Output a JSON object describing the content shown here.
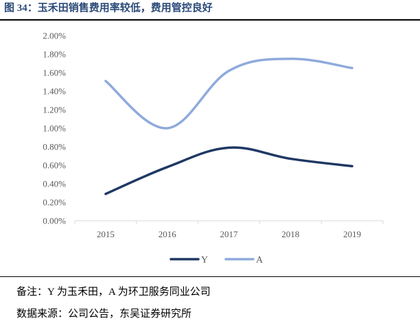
{
  "title": "图 34：玉禾田销售费用率较低，费用管控良好",
  "chart_data": {
    "type": "line",
    "title": "",
    "xlabel": "",
    "ylabel": "",
    "categories": [
      "2015",
      "2016",
      "2017",
      "2018",
      "2019"
    ],
    "ylim": [
      0,
      0.02
    ],
    "ytick_step": 0.002,
    "ytick_labels": [
      "0.00%",
      "0.20%",
      "0.40%",
      "0.60%",
      "0.80%",
      "1.00%",
      "1.20%",
      "1.40%",
      "1.60%",
      "1.80%",
      "2.00%"
    ],
    "series": [
      {
        "name": "Y",
        "values": [
          0.0029,
          0.0058,
          0.0079,
          0.0067,
          0.0059
        ],
        "color": "#1f3864"
      },
      {
        "name": "A",
        "values": [
          0.0151,
          0.01,
          0.0162,
          0.0175,
          0.0165
        ],
        "color": "#8faadc"
      }
    ],
    "grid": false,
    "legend_position": "bottom-center"
  },
  "notes": {
    "remark": "备注：Y 为玉禾田，A 为环卫服务同业公司",
    "source": "数据来源：公司公告，东吴证券研究所"
  }
}
